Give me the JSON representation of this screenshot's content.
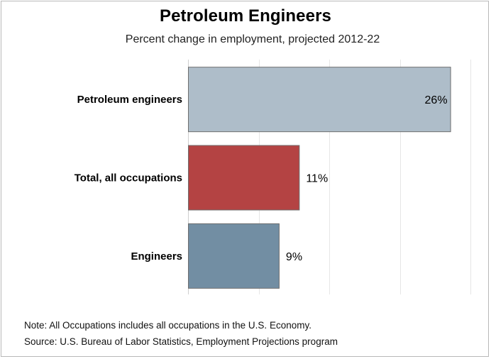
{
  "chart_data": {
    "type": "bar",
    "orientation": "horizontal",
    "title": "Petroleum Engineers",
    "subtitle": "Percent change in employment, projected 2012-22",
    "categories": [
      "Petroleum engineers",
      "Total, all occupations",
      "Engineers"
    ],
    "values": [
      26,
      11,
      9
    ],
    "value_labels": [
      "26%",
      "11%",
      "9%"
    ],
    "colors": [
      "#aebdc9",
      "#b44343",
      "#728ea3"
    ],
    "xlim": [
      0,
      28
    ],
    "grid": true,
    "gridlines_at": [
      7,
      14,
      21,
      28
    ],
    "legend": "none",
    "xlabel": "",
    "ylabel": ""
  },
  "notes": {
    "note": "Note: All Occupations includes all occupations in the U.S. Economy.",
    "source": "Source: U.S. Bureau of Labor Statistics, Employment Projections program"
  }
}
